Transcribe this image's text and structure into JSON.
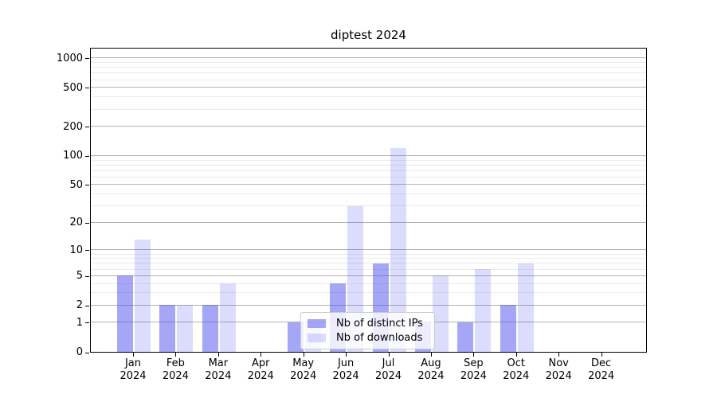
{
  "title": "diptest 2024",
  "chart_data": {
    "type": "bar",
    "title": "diptest 2024",
    "categories": [
      "Jan",
      "Feb",
      "Mar",
      "Apr",
      "May",
      "Jun",
      "Jul",
      "Aug",
      "Sep",
      "Oct",
      "Nov",
      "Dec"
    ],
    "category_year": "2024",
    "series": [
      {
        "name": "Nb of distinct IPs",
        "color": "rgba(78,78,240,0.5)",
        "values": [
          5,
          2,
          2,
          0,
          1,
          4,
          7,
          1,
          1,
          2,
          0,
          0
        ]
      },
      {
        "name": "Nb of downloads",
        "color": "rgba(78,78,240,0.2)",
        "values": [
          13,
          2,
          4,
          0,
          1,
          30,
          120,
          5,
          6,
          7,
          0,
          0
        ]
      }
    ],
    "yscale": "log1p",
    "ylim": [
      0,
      1300
    ],
    "yticks": [
      0,
      1,
      2,
      5,
      10,
      20,
      50,
      100,
      200,
      500,
      1000
    ],
    "minor_gridlines": [
      3,
      4,
      6,
      7,
      8,
      9,
      30,
      40,
      60,
      70,
      80,
      90,
      300,
      400,
      600,
      700,
      800,
      900
    ],
    "grid_on": true,
    "legend_position": "inside-lower-center",
    "colors": {
      "major_grid": "rgba(0,0,0,0.30)",
      "minor_grid": "rgba(0,0,0,0.08)",
      "axis": "#000000",
      "background": "#ffffff"
    }
  }
}
